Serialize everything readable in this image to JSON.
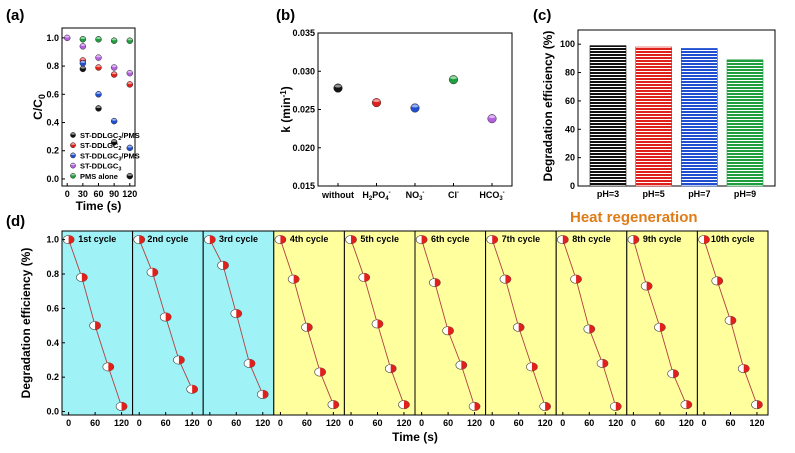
{
  "colors": {
    "black": "#111111",
    "red": "#e0201b",
    "blue": "#1f4fd0",
    "purple": "#b25fe0",
    "green": "#1f9e3e",
    "cyan_panel": "#9ff3f7",
    "yellow_panel": "#ffff9e",
    "heat_text": "#e07b17",
    "cycle_line": "#b04040"
  },
  "chart_data": [
    {
      "id": "a",
      "type": "scatter",
      "panel_label": "(a)",
      "xlabel": "Time (s)",
      "ylabel": "C/C0",
      "xlim": [
        -10,
        130
      ],
      "ylim": [
        -0.05,
        1.07
      ],
      "xticks": [
        0,
        30,
        60,
        90,
        120
      ],
      "yticks": [
        0.0,
        0.2,
        0.4,
        0.6,
        0.8,
        1.0
      ],
      "ytick_labels": [
        "0.0",
        "0.2",
        "0.4",
        "0.6",
        "0.8",
        "1.0"
      ],
      "legend_position": "bottom-left",
      "series": [
        {
          "name": "ST-DDLGC2/PMS",
          "color_key": "black",
          "x": [
            30,
            60,
            90,
            120
          ],
          "y": [
            0.78,
            0.5,
            0.26,
            0.02
          ]
        },
        {
          "name": "ST-DDLGC2",
          "color_key": "red",
          "x": [
            30,
            60,
            90,
            120
          ],
          "y": [
            0.84,
            0.79,
            0.74,
            0.67
          ]
        },
        {
          "name": "ST-DDLGC3/PMS",
          "color_key": "blue",
          "x": [
            30,
            60,
            90,
            120
          ],
          "y": [
            0.82,
            0.6,
            0.41,
            0.22
          ]
        },
        {
          "name": "ST-DDLGC3",
          "color_key": "purple",
          "x": [
            0,
            30,
            60,
            90,
            120
          ],
          "y": [
            1.0,
            0.94,
            0.86,
            0.79,
            0.75
          ]
        },
        {
          "name": "PMS alone",
          "color_key": "green",
          "x": [
            30,
            60,
            90,
            120
          ],
          "y": [
            0.99,
            0.99,
            0.98,
            0.98
          ]
        }
      ]
    },
    {
      "id": "b",
      "type": "scatter",
      "panel_label": "(b)",
      "ylabel": "k (min-1)",
      "ylim": [
        0.015,
        0.035
      ],
      "yticks": [
        0.015,
        0.02,
        0.025,
        0.03,
        0.035
      ],
      "ytick_labels": [
        "0.015",
        "0.020",
        "0.025",
        "0.030",
        "0.035"
      ],
      "categories": [
        "without",
        "H2PO4-",
        "NO3-",
        "Cl-",
        "HCO3-"
      ],
      "category_labels": [
        {
          "base": "without"
        },
        {
          "base": "H",
          "sub1": "2",
          "mid": "PO",
          "sub2": "4",
          "sup": "-"
        },
        {
          "base": "NO",
          "sub1": "3",
          "sup": "-"
        },
        {
          "base": "Cl",
          "sup": "-"
        },
        {
          "base": "HCO",
          "sub1": "3",
          "sup": "-"
        }
      ],
      "values": [
        0.0278,
        0.0259,
        0.0252,
        0.0289,
        0.0238
      ],
      "point_color_keys": [
        "black",
        "red",
        "blue",
        "green",
        "purple"
      ]
    },
    {
      "id": "c",
      "type": "bar",
      "panel_label": "(c)",
      "ylabel": "Degradation efficiency (%)",
      "ylim": [
        0,
        110
      ],
      "yticks": [
        0,
        20,
        40,
        60,
        80,
        100
      ],
      "categories": [
        "pH=3",
        "pH=5",
        "pH=7",
        "pH=9"
      ],
      "values": [
        99,
        98,
        97,
        89
      ],
      "bar_color_keys": [
        "black",
        "red",
        "blue",
        "green"
      ]
    },
    {
      "id": "d",
      "type": "line",
      "panel_label": "(d)",
      "xlabel": "Time (s)",
      "ylabel": "Degradation efficiency (%)",
      "ylim": [
        -0.02,
        1.05
      ],
      "yticks": [
        0.0,
        0.2,
        0.4,
        0.6,
        0.8,
        1.0
      ],
      "ytick_labels": [
        "0.0",
        "0.2",
        "0.4",
        "0.6",
        "0.8",
        "1.0"
      ],
      "xlim": [
        -15,
        145
      ],
      "xticks": [
        0,
        60,
        120
      ],
      "annotation": "Heat regeneration",
      "x": [
        0,
        30,
        60,
        90,
        120
      ],
      "cycles": [
        {
          "name": "1st cycle",
          "regime": "cyan",
          "y": [
            1.0,
            0.78,
            0.5,
            0.26,
            0.03
          ]
        },
        {
          "name": "2nd cycle",
          "regime": "cyan",
          "y": [
            1.0,
            0.81,
            0.55,
            0.3,
            0.13
          ]
        },
        {
          "name": "3rd cycle",
          "regime": "cyan",
          "y": [
            1.0,
            0.85,
            0.57,
            0.28,
            0.1
          ]
        },
        {
          "name": "4th cycle",
          "regime": "yellow",
          "y": [
            1.0,
            0.77,
            0.49,
            0.23,
            0.04
          ]
        },
        {
          "name": "5th cycle",
          "regime": "yellow",
          "y": [
            1.0,
            0.78,
            0.51,
            0.25,
            0.04
          ]
        },
        {
          "name": "6th cycle",
          "regime": "yellow",
          "y": [
            1.0,
            0.75,
            0.47,
            0.27,
            0.03
          ]
        },
        {
          "name": "7th cycle",
          "regime": "yellow",
          "y": [
            1.0,
            0.77,
            0.49,
            0.26,
            0.03
          ]
        },
        {
          "name": "8th cycle",
          "regime": "yellow",
          "y": [
            1.0,
            0.77,
            0.48,
            0.28,
            0.03
          ]
        },
        {
          "name": "9th cycle",
          "regime": "yellow",
          "y": [
            1.0,
            0.73,
            0.49,
            0.22,
            0.04
          ]
        },
        {
          "name": "10th cycle",
          "regime": "yellow",
          "y": [
            1.0,
            0.76,
            0.53,
            0.25,
            0.04
          ]
        }
      ]
    }
  ]
}
